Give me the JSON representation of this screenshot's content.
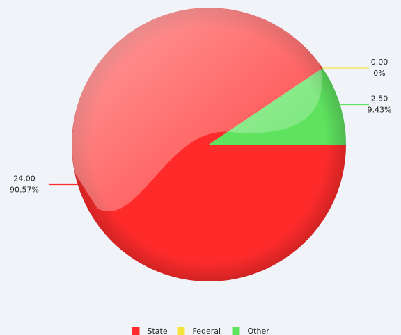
{
  "chart_data": {
    "type": "pie",
    "categories": [
      "State",
      "Federal",
      "Other"
    ],
    "values": [
      24,
      0,
      2.5
    ],
    "value_labels": [
      "24.00",
      "0.00",
      "2.50"
    ],
    "percents": [
      90.57,
      0,
      9.43
    ],
    "percent_labels": [
      "90.57%",
      "0%",
      "9.43%"
    ],
    "colors": [
      "#ff2b2b",
      "#f2e43a",
      "#5fe35f"
    ],
    "legend": "bottom"
  }
}
